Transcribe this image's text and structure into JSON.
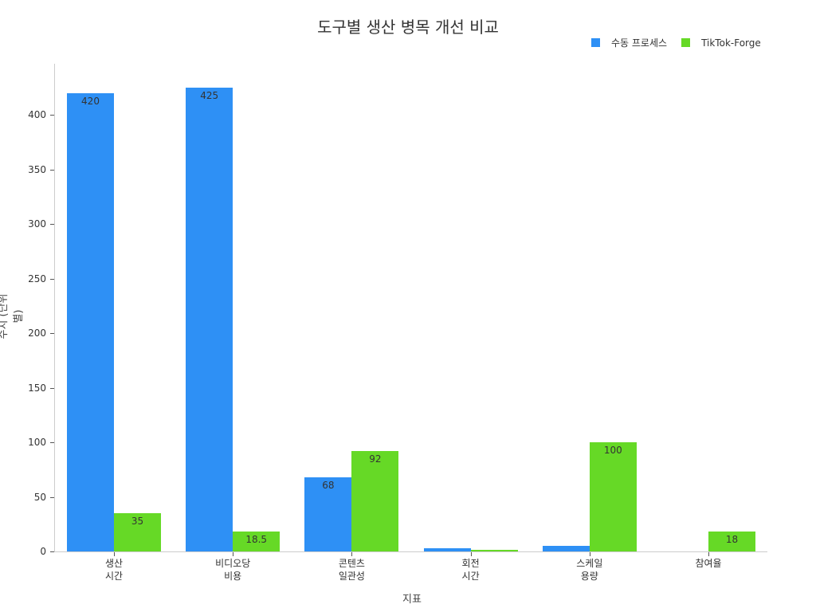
{
  "chart_data": {
    "type": "bar",
    "title": "도구별 생산 병목 개선 비교",
    "xlabel": "지표",
    "ylabel": "수치 (단위별)",
    "categories": [
      "생산\n시간",
      "비디오당\n비용",
      "콘텐츠\n일관성",
      "회전\n시간",
      "스케일\n용량",
      "참여율"
    ],
    "series": [
      {
        "name": "수동 프로세스",
        "color": "#2e90f5",
        "values": [
          420,
          425,
          68,
          3,
          5,
          0
        ],
        "labels": [
          "420",
          "425",
          "68",
          "",
          "",
          ""
        ]
      },
      {
        "name": "TikTok-Forge",
        "color": "#66d926",
        "values": [
          35,
          18.5,
          92,
          1.5,
          100,
          18
        ],
        "labels": [
          "35",
          "18.5",
          "92",
          "",
          "100",
          "18"
        ]
      }
    ],
    "yticks": [
      0,
      50,
      100,
      150,
      200,
      250,
      300,
      350,
      400
    ],
    "ylim": [
      0,
      447
    ],
    "grid": false,
    "legend_position": "top-right"
  },
  "title": "도구별 생산 병목 개선 비교",
  "legend": {
    "manual": "수동 프로세스",
    "forge": "TikTok-Forge"
  },
  "axes": {
    "xlabel": "지표",
    "ylabel": "수치 (단위별)",
    "yticks": [
      "0",
      "50",
      "100",
      "150",
      "200",
      "250",
      "300",
      "350",
      "400"
    ],
    "xcategories": [
      "생산\n시간",
      "비디오당\n비용",
      "콘텐츠\n일관성",
      "회전\n시간",
      "스케일\n용량",
      "참여율"
    ]
  },
  "colors": {
    "manual": "#2e90f5",
    "forge": "#66d926"
  }
}
